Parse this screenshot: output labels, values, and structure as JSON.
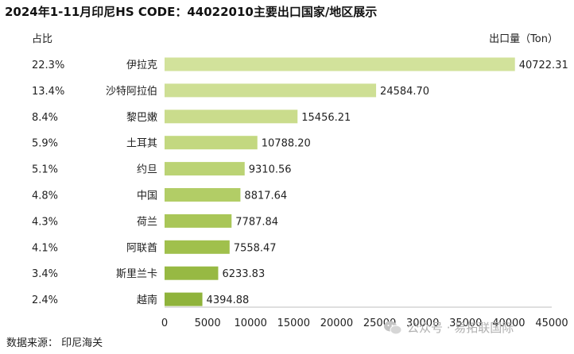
{
  "title": "2024年1-11月印尼HS CODE：44022010主要出口国家/地区展示",
  "pct_header": "占比",
  "unit_label": "出口量（Ton）",
  "source": "数据来源：  印尼海关",
  "watermark": "公众号 · 易拓联国际",
  "chart_data": {
    "type": "bar",
    "orientation": "horizontal",
    "title": "2024年1-11月印尼HS CODE：44022010主要出口国家/地区展示",
    "categories": [
      "伊拉克",
      "沙特阿拉伯",
      "黎巴嫩",
      "土耳其",
      "约旦",
      "中国",
      "荷兰",
      "阿联酋",
      "斯里兰卡",
      "越南"
    ],
    "values": [
      40722.31,
      24584.7,
      15456.21,
      10788.2,
      9310.56,
      8817.64,
      7787.84,
      7558.47,
      6233.83,
      4394.88
    ],
    "value_labels": [
      "40722.31",
      "24584.70",
      "15456.21",
      "10788.20",
      "9310.56",
      "8817.64",
      "7787.84",
      "7558.47",
      "6233.83",
      "4394.88"
    ],
    "percentages": [
      "22.3%",
      "13.4%",
      "8.4%",
      "5.9%",
      "5.1%",
      "4.8%",
      "4.3%",
      "4.1%",
      "3.4%",
      "2.4%"
    ],
    "xlabel": "出口量（Ton）",
    "xlim": [
      0,
      45000
    ],
    "xticks": [
      0,
      5000,
      10000,
      15000,
      20000,
      25000,
      30000,
      35000,
      40000,
      45000
    ],
    "grid": false,
    "colors": [
      "#d2e29b",
      "#cedf94",
      "#cadc8c",
      "#c3d880",
      "#bbd374",
      "#b2cd66",
      "#a9c658",
      "#a0c04c",
      "#97b943",
      "#8fb33b"
    ]
  }
}
